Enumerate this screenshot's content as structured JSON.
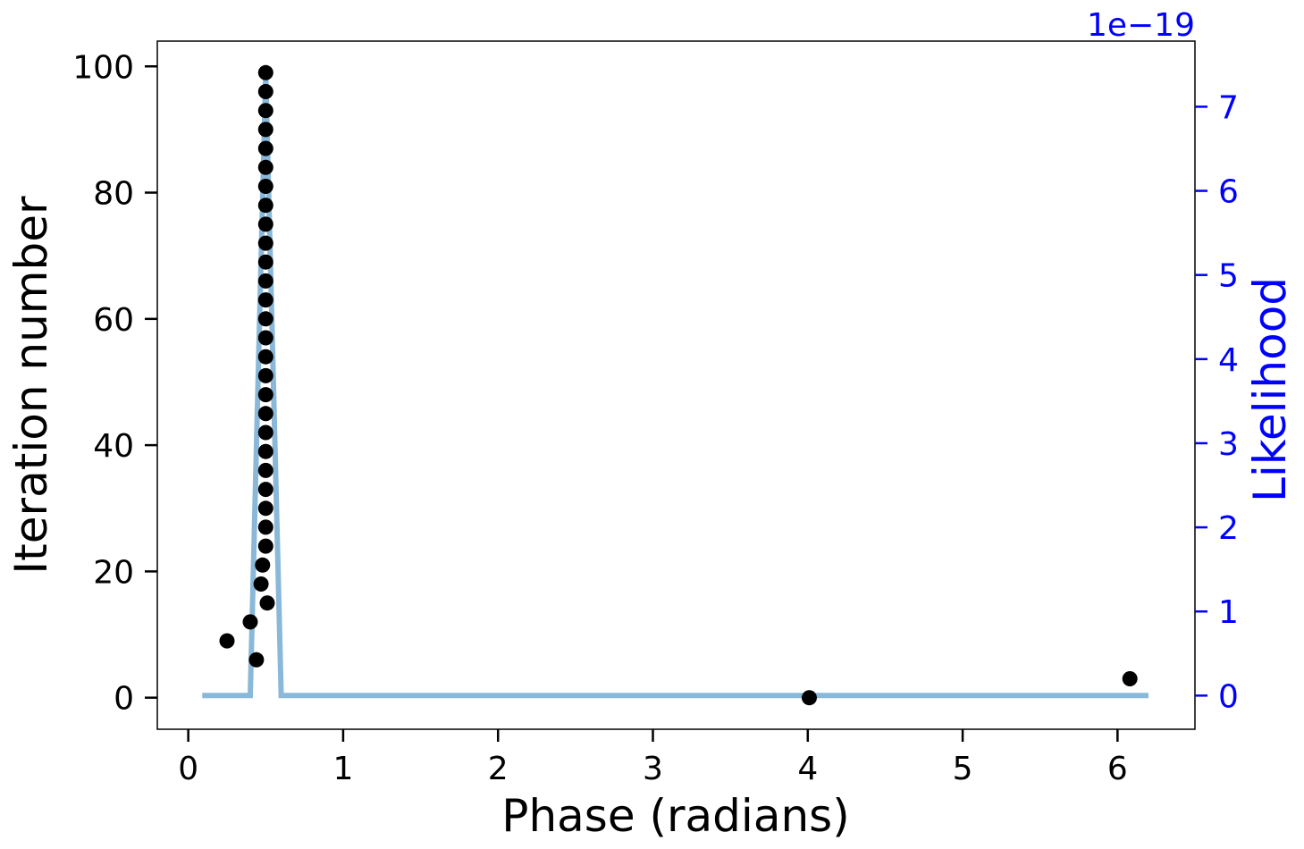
{
  "chart_data": {
    "type": "scatter",
    "xlabel": "Phase (radians)",
    "ylabel": "Iteration number",
    "y2label": "Likelihood",
    "y2_offset_text": "1e−19",
    "xlim": [
      -0.2,
      6.5
    ],
    "ylim": [
      -5,
      104
    ],
    "y2lim": [
      -0.4,
      7.78
    ],
    "x_ticks": [
      0,
      1,
      2,
      3,
      4,
      5,
      6
    ],
    "y_ticks": [
      0,
      20,
      40,
      60,
      80,
      100
    ],
    "y2_ticks": [
      0,
      1,
      2,
      3,
      4,
      5,
      6,
      7
    ],
    "colors": {
      "points": "#000000",
      "likelihood_line": "#8ab8d8",
      "right_axis": "#0000ff",
      "frame": "#000000"
    },
    "series": [
      {
        "type": "scatter",
        "axis": "left",
        "x": [
          4.01,
          6.08,
          0.44,
          0.25,
          0.4,
          0.51,
          0.47,
          0.48,
          0.5,
          0.5,
          0.5,
          0.5,
          0.5,
          0.5,
          0.5,
          0.5,
          0.5,
          0.5,
          0.5,
          0.5,
          0.5,
          0.5,
          0.5,
          0.5,
          0.5,
          0.5,
          0.5,
          0.5,
          0.5,
          0.5,
          0.5,
          0.5,
          0.5,
          0.5
        ],
        "y": [
          0,
          3,
          6,
          9,
          12,
          15,
          18,
          21,
          24,
          27,
          30,
          33,
          36,
          39,
          42,
          45,
          48,
          51,
          54,
          57,
          60,
          63,
          66,
          69,
          72,
          75,
          78,
          81,
          84,
          87,
          90,
          93,
          96,
          99
        ]
      },
      {
        "type": "line",
        "axis": "right",
        "x": [
          0.09,
          0.4,
          0.5,
          0.6,
          6.2
        ],
        "y": [
          0,
          0,
          7.4,
          0,
          0
        ]
      }
    ]
  }
}
